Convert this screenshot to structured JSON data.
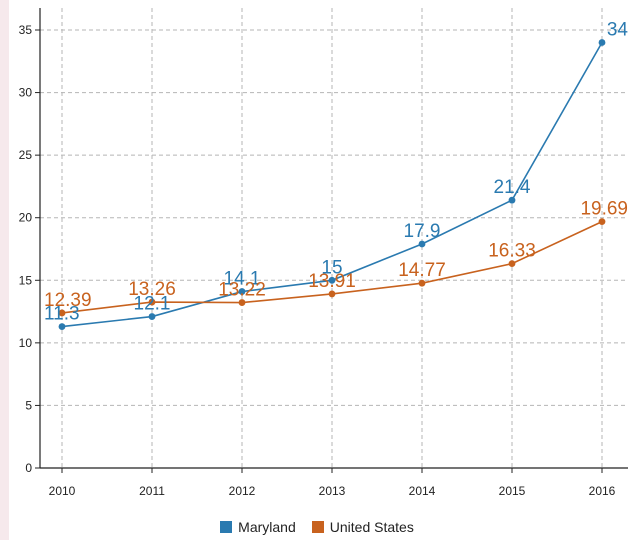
{
  "chart_data": {
    "type": "line",
    "x": [
      "2010",
      "2011",
      "2012",
      "2013",
      "2014",
      "2015",
      "2016"
    ],
    "ylim": [
      0,
      36
    ],
    "yticks": [
      0,
      5,
      10,
      15,
      20,
      25,
      30,
      35
    ],
    "grid": true,
    "legend_position": "bottom",
    "series": [
      {
        "name": "Maryland",
        "color": "#2a7ab0",
        "values": [
          11.3,
          12.1,
          14.1,
          15,
          17.9,
          21.4,
          34
        ],
        "labels": [
          "11.3",
          "12.1",
          "14.1",
          "15",
          "17.9",
          "21.4",
          "34"
        ]
      },
      {
        "name": "United States",
        "color": "#c8621e",
        "values": [
          12.39,
          13.26,
          13.22,
          13.91,
          14.77,
          16.33,
          19.69
        ],
        "labels": [
          "12.39",
          "13.26",
          "13.22",
          "13.91",
          "14.77",
          "16.33",
          "19.69"
        ]
      }
    ]
  }
}
